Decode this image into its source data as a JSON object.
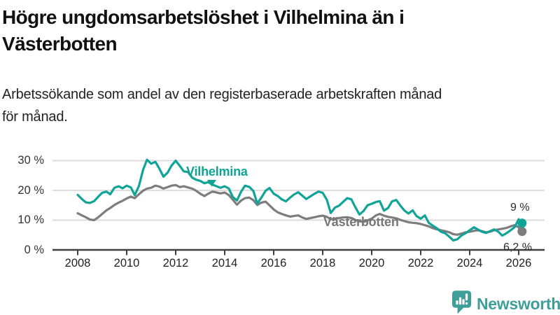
{
  "header": {
    "title_lines": [
      "Högre ungdomsarbetslöshet i Vilhelmina än i",
      "Västerbotten"
    ],
    "subtitle_lines": [
      "Arbetssökande som andel av den registerbaserade arbetskraften månad",
      "för månad."
    ]
  },
  "colors": {
    "vilhelmina_teal": "#10a498",
    "vasterbotten_gray": "#7d7d7d",
    "grid": "#d9d9d9",
    "axis": "#3f3f3f",
    "logo_teal": "#3f9e99",
    "title_text": "#111111"
  },
  "chart_data": {
    "type": "line",
    "title": "Högre ungdomsarbetslöshet i Vilhelmina än i Västerbotten",
    "subtitle": "Arbetssökande som andel av den registerbaserade arbetskraften månad för månad.",
    "xlabel": "",
    "ylabel": "",
    "x_unit": "year (monthly series, sampled)",
    "ylim": [
      0,
      32
    ],
    "xlim": [
      2008,
      2026.5
    ],
    "grid": "horizontal",
    "legend_position": "inline-labels",
    "yticks": [
      {
        "value": 0,
        "label": "0 %"
      },
      {
        "value": 10,
        "label": "10 %"
      },
      {
        "value": 20,
        "label": "20 %"
      },
      {
        "value": 30,
        "label": "30 %"
      }
    ],
    "xticks": [
      {
        "value": 2008,
        "label": "2008"
      },
      {
        "value": 2010,
        "label": "2010"
      },
      {
        "value": 2012,
        "label": "2012"
      },
      {
        "value": 2014,
        "label": "2014"
      },
      {
        "value": 2016,
        "label": "2016"
      },
      {
        "value": 2018,
        "label": "2018"
      },
      {
        "value": 2020,
        "label": "2020"
      },
      {
        "value": 2022,
        "label": "2022"
      },
      {
        "value": 2024,
        "label": "2024"
      },
      {
        "value": 2026,
        "label": "2026"
      }
    ],
    "series": [
      {
        "name": "Vilhelmina",
        "color": "#10a498",
        "end_value": 9.0,
        "end_label": "9 %",
        "points": [
          [
            2008.0,
            18.5
          ],
          [
            2008.17,
            17.1
          ],
          [
            2008.33,
            16.0
          ],
          [
            2008.5,
            15.8
          ],
          [
            2008.67,
            16.4
          ],
          [
            2008.83,
            17.8
          ],
          [
            2009.0,
            19.2
          ],
          [
            2009.17,
            19.6
          ],
          [
            2009.33,
            18.7
          ],
          [
            2009.5,
            20.9
          ],
          [
            2009.67,
            21.4
          ],
          [
            2009.83,
            20.7
          ],
          [
            2010.0,
            21.6
          ],
          [
            2010.17,
            21.0
          ],
          [
            2010.33,
            18.4
          ],
          [
            2010.5,
            21.5
          ],
          [
            2010.67,
            27.0
          ],
          [
            2010.83,
            30.3
          ],
          [
            2011.0,
            29.0
          ],
          [
            2011.17,
            29.6
          ],
          [
            2011.33,
            27.4
          ],
          [
            2011.5,
            24.6
          ],
          [
            2011.67,
            26.0
          ],
          [
            2011.83,
            28.3
          ],
          [
            2012.0,
            30.0
          ],
          [
            2012.17,
            28.2
          ],
          [
            2012.33,
            26.4
          ],
          [
            2012.5,
            26.2
          ],
          [
            2012.67,
            24.3
          ],
          [
            2012.83,
            23.6
          ],
          [
            2013.0,
            23.2
          ],
          [
            2013.17,
            22.4
          ],
          [
            2013.33,
            22.8
          ],
          [
            2013.5,
            21.9
          ],
          [
            2013.67,
            21.4
          ],
          [
            2013.83,
            20.9
          ],
          [
            2014.0,
            21.4
          ],
          [
            2014.17,
            20.6
          ],
          [
            2014.33,
            17.8
          ],
          [
            2014.5,
            16.6
          ],
          [
            2014.67,
            19.6
          ],
          [
            2014.83,
            21.6
          ],
          [
            2015.0,
            21.2
          ],
          [
            2015.17,
            19.8
          ],
          [
            2015.33,
            15.6
          ],
          [
            2015.5,
            17.6
          ],
          [
            2015.67,
            19.9
          ],
          [
            2015.83,
            20.8
          ],
          [
            2016.0,
            18.9
          ],
          [
            2016.17,
            18.1
          ],
          [
            2016.33,
            17.0
          ],
          [
            2016.5,
            16.3
          ],
          [
            2016.67,
            17.6
          ],
          [
            2016.83,
            18.6
          ],
          [
            2017.0,
            19.4
          ],
          [
            2017.17,
            18.2
          ],
          [
            2017.33,
            17.1
          ],
          [
            2017.5,
            18.0
          ],
          [
            2017.67,
            18.9
          ],
          [
            2017.83,
            19.6
          ],
          [
            2018.0,
            19.2
          ],
          [
            2018.17,
            16.8
          ],
          [
            2018.33,
            12.4
          ],
          [
            2018.5,
            14.2
          ],
          [
            2018.67,
            14.9
          ],
          [
            2018.83,
            16.1
          ],
          [
            2019.0,
            17.4
          ],
          [
            2019.17,
            17.0
          ],
          [
            2019.33,
            14.4
          ],
          [
            2019.5,
            11.9
          ],
          [
            2019.67,
            13.1
          ],
          [
            2019.83,
            15.0
          ],
          [
            2020.0,
            15.5
          ],
          [
            2020.17,
            16.1
          ],
          [
            2020.33,
            16.4
          ],
          [
            2020.5,
            13.2
          ],
          [
            2020.67,
            14.1
          ],
          [
            2020.83,
            16.3
          ],
          [
            2021.0,
            16.8
          ],
          [
            2021.17,
            14.9
          ],
          [
            2021.33,
            13.3
          ],
          [
            2021.5,
            12.2
          ],
          [
            2021.67,
            13.3
          ],
          [
            2021.83,
            11.4
          ],
          [
            2022.0,
            10.5
          ],
          [
            2022.17,
            11.6
          ],
          [
            2022.33,
            9.1
          ],
          [
            2022.5,
            8.1
          ],
          [
            2022.67,
            7.2
          ],
          [
            2022.83,
            6.1
          ],
          [
            2023.0,
            5.6
          ],
          [
            2023.17,
            4.4
          ],
          [
            2023.33,
            3.2
          ],
          [
            2023.5,
            3.6
          ],
          [
            2023.67,
            4.9
          ],
          [
            2023.83,
            5.6
          ],
          [
            2024.0,
            6.6
          ],
          [
            2024.17,
            7.6
          ],
          [
            2024.33,
            6.9
          ],
          [
            2024.5,
            6.1
          ],
          [
            2024.67,
            5.7
          ],
          [
            2024.83,
            6.3
          ],
          [
            2025.0,
            6.9
          ],
          [
            2025.17,
            6.1
          ],
          [
            2025.33,
            4.8
          ],
          [
            2025.5,
            5.6
          ],
          [
            2025.67,
            6.6
          ],
          [
            2025.83,
            7.6
          ],
          [
            2026.0,
            10.3
          ],
          [
            2026.08,
            9.0
          ]
        ]
      },
      {
        "name": "Västerbotten",
        "color": "#7d7d7d",
        "end_value": 6.2,
        "end_label": "6,2 %",
        "points": [
          [
            2008.0,
            12.3
          ],
          [
            2008.17,
            11.6
          ],
          [
            2008.33,
            11.0
          ],
          [
            2008.5,
            10.2
          ],
          [
            2008.67,
            10.0
          ],
          [
            2008.83,
            10.9
          ],
          [
            2009.0,
            12.1
          ],
          [
            2009.17,
            13.3
          ],
          [
            2009.33,
            14.1
          ],
          [
            2009.5,
            15.1
          ],
          [
            2009.67,
            15.9
          ],
          [
            2009.83,
            16.5
          ],
          [
            2010.0,
            17.3
          ],
          [
            2010.17,
            17.9
          ],
          [
            2010.33,
            17.4
          ],
          [
            2010.5,
            18.7
          ],
          [
            2010.67,
            19.9
          ],
          [
            2010.83,
            20.6
          ],
          [
            2011.0,
            20.9
          ],
          [
            2011.17,
            21.6
          ],
          [
            2011.33,
            21.3
          ],
          [
            2011.5,
            20.6
          ],
          [
            2011.67,
            21.1
          ],
          [
            2011.83,
            21.6
          ],
          [
            2012.0,
            21.8
          ],
          [
            2012.17,
            21.1
          ],
          [
            2012.33,
            21.4
          ],
          [
            2012.5,
            21.0
          ],
          [
            2012.67,
            20.6
          ],
          [
            2012.83,
            19.9
          ],
          [
            2013.0,
            18.9
          ],
          [
            2013.17,
            18.1
          ],
          [
            2013.33,
            18.9
          ],
          [
            2013.5,
            19.6
          ],
          [
            2013.67,
            19.3
          ],
          [
            2013.83,
            19.0
          ],
          [
            2014.0,
            19.3
          ],
          [
            2014.17,
            18.4
          ],
          [
            2014.33,
            16.9
          ],
          [
            2014.5,
            15.2
          ],
          [
            2014.67,
            16.6
          ],
          [
            2014.83,
            17.4
          ],
          [
            2015.0,
            17.6
          ],
          [
            2015.17,
            16.7
          ],
          [
            2015.33,
            15.1
          ],
          [
            2015.5,
            15.9
          ],
          [
            2015.67,
            16.2
          ],
          [
            2015.83,
            15.0
          ],
          [
            2016.0,
            13.6
          ],
          [
            2016.17,
            12.6
          ],
          [
            2016.33,
            12.1
          ],
          [
            2016.5,
            11.6
          ],
          [
            2016.67,
            11.2
          ],
          [
            2016.83,
            11.4
          ],
          [
            2017.0,
            11.6
          ],
          [
            2017.17,
            10.9
          ],
          [
            2017.33,
            10.4
          ],
          [
            2017.5,
            10.7
          ],
          [
            2017.67,
            11.0
          ],
          [
            2017.83,
            11.3
          ],
          [
            2018.0,
            11.5
          ],
          [
            2018.17,
            11.1
          ],
          [
            2018.33,
            10.3
          ],
          [
            2018.5,
            10.5
          ],
          [
            2018.67,
            10.7
          ],
          [
            2018.83,
            10.9
          ],
          [
            2019.0,
            11.0
          ],
          [
            2019.17,
            10.7
          ],
          [
            2019.33,
            10.1
          ],
          [
            2019.5,
            9.6
          ],
          [
            2019.67,
            9.4
          ],
          [
            2019.83,
            9.9
          ],
          [
            2020.0,
            10.5
          ],
          [
            2020.17,
            11.6
          ],
          [
            2020.33,
            12.1
          ],
          [
            2020.5,
            11.5
          ],
          [
            2020.67,
            11.1
          ],
          [
            2020.83,
            10.9
          ],
          [
            2021.0,
            10.6
          ],
          [
            2021.17,
            10.1
          ],
          [
            2021.33,
            9.7
          ],
          [
            2021.5,
            9.3
          ],
          [
            2021.67,
            9.1
          ],
          [
            2021.83,
            9.0
          ],
          [
            2022.0,
            8.7
          ],
          [
            2022.17,
            8.3
          ],
          [
            2022.33,
            7.9
          ],
          [
            2022.5,
            7.3
          ],
          [
            2022.67,
            6.9
          ],
          [
            2022.83,
            6.6
          ],
          [
            2023.0,
            6.3
          ],
          [
            2023.17,
            5.9
          ],
          [
            2023.33,
            5.3
          ],
          [
            2023.5,
            5.1
          ],
          [
            2023.67,
            5.5
          ],
          [
            2023.83,
            5.9
          ],
          [
            2024.0,
            6.1
          ],
          [
            2024.17,
            6.4
          ],
          [
            2024.33,
            6.6
          ],
          [
            2024.5,
            6.3
          ],
          [
            2024.67,
            5.9
          ],
          [
            2024.83,
            6.1
          ],
          [
            2025.0,
            6.6
          ],
          [
            2025.17,
            6.9
          ],
          [
            2025.33,
            7.1
          ],
          [
            2025.5,
            7.4
          ],
          [
            2025.67,
            7.9
          ],
          [
            2025.83,
            8.3
          ],
          [
            2026.0,
            7.6
          ],
          [
            2026.08,
            6.2
          ]
        ]
      }
    ]
  },
  "logo": {
    "text": "Newsworthy"
  }
}
